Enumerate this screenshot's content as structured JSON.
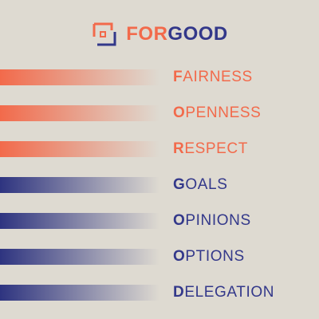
{
  "brand": {
    "name_part1": "FOR",
    "name_part2": "GOOD",
    "icon": "square-bracket-logo-icon",
    "colors": {
      "orange": "#f26a4b",
      "navy": "#33388a"
    }
  },
  "rows": [
    {
      "initial": "F",
      "rest": "AIRNESS",
      "color": "orange"
    },
    {
      "initial": "O",
      "rest": "PENNESS",
      "color": "orange"
    },
    {
      "initial": "R",
      "rest": "ESPECT",
      "color": "orange"
    },
    {
      "initial": "G",
      "rest": "OALS",
      "color": "blue"
    },
    {
      "initial": "O",
      "rest": "PINIONS",
      "color": "blue"
    },
    {
      "initial": "O",
      "rest": "PTIONS",
      "color": "blue"
    },
    {
      "initial": "D",
      "rest": "ELEGATION",
      "color": "blue"
    }
  ]
}
